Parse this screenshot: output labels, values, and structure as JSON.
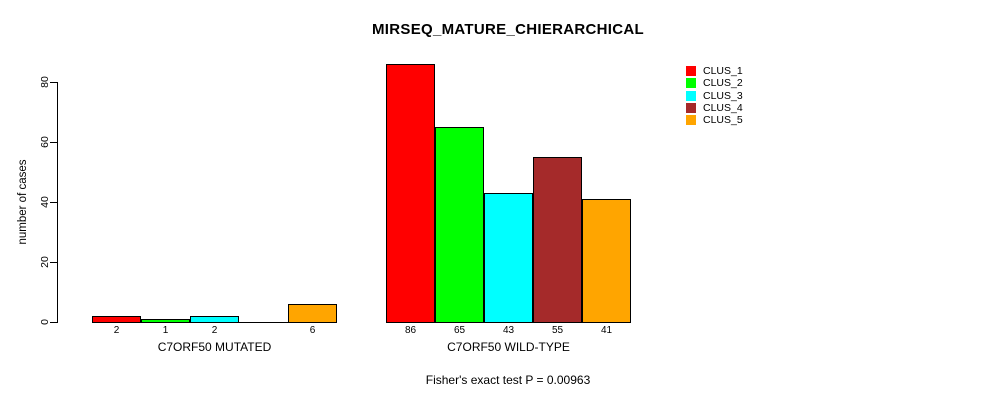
{
  "chart_data": {
    "type": "bar",
    "title": "MIRSEQ_MATURE_CHIERARCHICAL",
    "ylabel": "number of cases",
    "xlabel": "",
    "footer": "Fisher's exact test P = 0.00963",
    "yticks": [
      0,
      20,
      40,
      60,
      80
    ],
    "ylim": [
      0,
      86
    ],
    "grid": false,
    "legend_position": "right",
    "series": [
      "CLUS_1",
      "CLUS_2",
      "CLUS_3",
      "CLUS_4",
      "CLUS_5"
    ],
    "colors": [
      "#FF0000",
      "#00FF00",
      "#00FFFF",
      "#A52A2A",
      "#FFA500"
    ],
    "groups": [
      {
        "label": "C7ORF50 MUTATED",
        "values": [
          2,
          1,
          2,
          0,
          6
        ],
        "bar_labels": [
          "2",
          "1",
          "2",
          "",
          "6"
        ]
      },
      {
        "label": "C7ORF50 WILD-TYPE",
        "values": [
          86,
          65,
          43,
          55,
          41
        ],
        "bar_labels": [
          "86",
          "65",
          "43",
          "55",
          "41"
        ]
      }
    ]
  }
}
